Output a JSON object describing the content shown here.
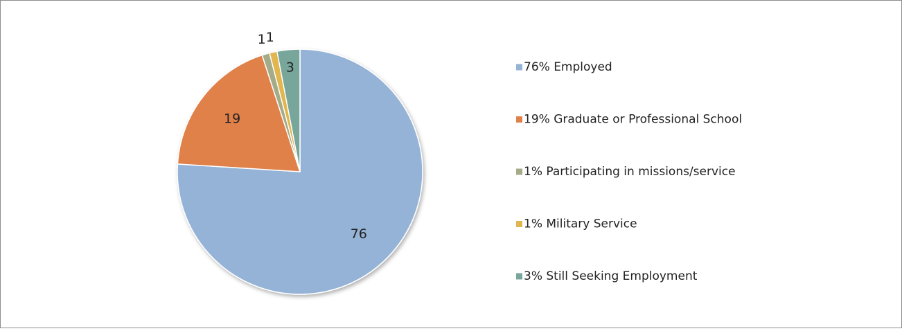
{
  "chart_data": {
    "type": "pie",
    "categories": [
      "76% Employed",
      "19% Graduate or Professional School",
      "1% Participating in missions/service",
      "1% Military Service",
      "3% Still Seeking Employment"
    ],
    "values": [
      76,
      19,
      1,
      1,
      3
    ],
    "colors": [
      "#95b3d7",
      "#e0814a",
      "#a4ab88",
      "#e1b650",
      "#78a69b"
    ],
    "legend": "right"
  }
}
